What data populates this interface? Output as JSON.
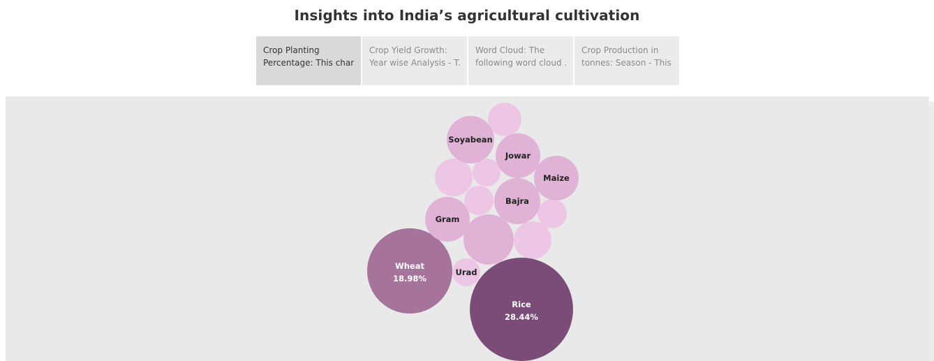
{
  "header": {
    "title": "Insights into India’s agricultural cultivation"
  },
  "tabs": [
    {
      "line1": "Crop Planting",
      "line2": "Percentage: This char..",
      "active": true
    },
    {
      "line1": "Crop Yield Growth:",
      "line2": "Year wise Analysis - T..",
      "active": false
    },
    {
      "line1": "Word Cloud: The",
      "line2": "following word cloud ..",
      "active": false
    },
    {
      "line1": "Crop Production in",
      "line2": "tonnes: Season - This ..",
      "active": false
    }
  ],
  "colors": {
    "rice": "#7b4c78",
    "wheat": "#a6739c",
    "mid": "#e0b2d6",
    "light": "#ecc6e4",
    "dark_text": "#222222",
    "light_text": "#ffffff"
  },
  "chart_data": {
    "type": "packed-bubble",
    "title": "",
    "labeled_items": [
      {
        "crop": "Rice",
        "percent": "28.44%"
      },
      {
        "crop": "Wheat",
        "percent": "18.98%"
      },
      {
        "crop": "Soyabean"
      },
      {
        "crop": "Jowar"
      },
      {
        "crop": "Maize"
      },
      {
        "crop": "Bajra"
      },
      {
        "crop": "Gram"
      },
      {
        "crop": "Urad"
      }
    ],
    "unlabeled_bubble_count": 8
  }
}
